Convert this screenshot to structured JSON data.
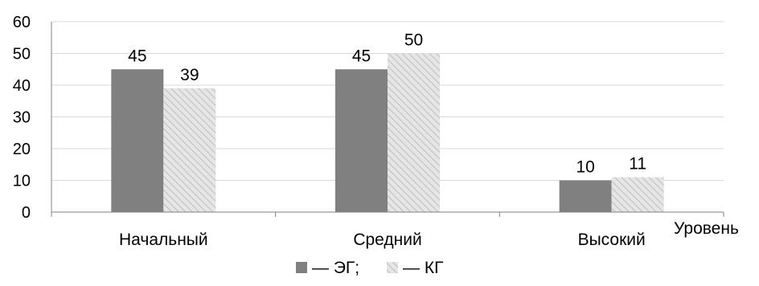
{
  "chart_data": {
    "type": "bar",
    "categories": [
      "Начальный",
      "Средний",
      "Высокий"
    ],
    "series": [
      {
        "name": "ЭГ",
        "values": [
          45,
          45,
          10
        ],
        "color": "#808080",
        "pattern": "solid"
      },
      {
        "name": "КГ",
        "values": [
          39,
          50,
          11
        ],
        "color": "#d9d9d9",
        "pattern": "diagonal-hatch"
      }
    ],
    "xlabel": "Уровень",
    "ylabel": "",
    "title": "",
    "ylim": [
      0,
      60
    ],
    "yticks": [
      0,
      10,
      20,
      30,
      40,
      50,
      60
    ],
    "grid": true,
    "grid_color": "#d9d9d9",
    "legend": {
      "placement": "bottom",
      "entries": [
        {
          "series": 0,
          "text": "— ЭГ;"
        },
        {
          "series": 1,
          "text": "— КГ"
        }
      ]
    },
    "data_labels": true
  }
}
